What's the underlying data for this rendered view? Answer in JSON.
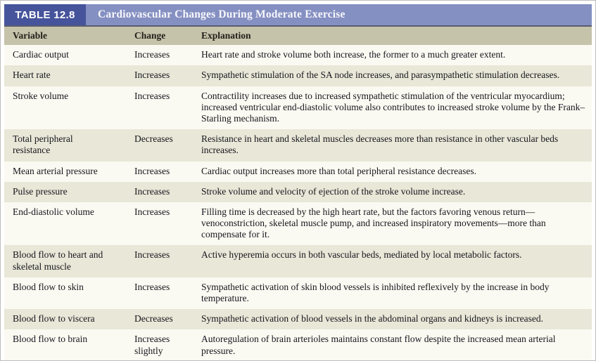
{
  "table": {
    "label": "TABLE 12.8",
    "title": "Cardiovascular Changes During Moderate Exercise",
    "columns": [
      "Variable",
      "Change",
      "Explanation"
    ],
    "rows": [
      {
        "variable": "Cardiac output",
        "change": "Increases",
        "explanation": "Heart rate and stroke volume both increase, the former to a much greater extent."
      },
      {
        "variable": "Heart rate",
        "change": "Increases",
        "explanation": "Sympathetic stimulation of the SA node increases, and parasympathetic stimulation decreases."
      },
      {
        "variable": "Stroke volume",
        "change": "Increases",
        "explanation": "Contractility increases due to increased sympathetic stimulation of the ventricular myocardium; increased ventricular end-diastolic volume also contributes to increased stroke volume by the Frank–Starling mechanism."
      },
      {
        "variable": "Total peripheral resistance",
        "change": "Decreases",
        "explanation": "Resistance in heart and skeletal muscles decreases more than resistance in other vascular beds increases."
      },
      {
        "variable": "Mean arterial pressure",
        "change": "Increases",
        "explanation": "Cardiac output increases more than total peripheral resistance decreases."
      },
      {
        "variable": "Pulse pressure",
        "change": "Increases",
        "explanation": "Stroke volume and velocity of ejection of the stroke volume increase."
      },
      {
        "variable": "End-diastolic volume",
        "change": "Increases",
        "explanation": "Filling time is decreased by the high heart rate, but the factors favoring venous return—venoconstriction, skeletal muscle pump, and increased inspiratory movements—more than compensate for it."
      },
      {
        "variable": "Blood flow to heart and skeletal muscle",
        "change": "Increases",
        "explanation": "Active hyperemia occurs in both vascular beds, mediated by local metabolic factors."
      },
      {
        "variable": "Blood flow to skin",
        "change": "Increases",
        "explanation": "Sympathetic activation of skin blood vessels is inhibited reflexively by the increase in body temperature."
      },
      {
        "variable": "Blood flow to viscera",
        "change": "Decreases",
        "explanation": "Sympathetic activation of blood vessels in the abdominal organs and kidneys is increased."
      },
      {
        "variable": "Blood flow to brain",
        "change": "Increases slightly",
        "explanation": "Autoregulation of brain arterioles maintains constant flow despite the increased mean arterial pressure."
      }
    ],
    "colors": {
      "label_box_bg": "#46549b",
      "title_bar_bg": "#8590c2",
      "column_header_bg": "#c6c3ab",
      "row_bg": "#fbfaf2",
      "row_alt_bg": "#e9e7d7",
      "header_text": "#ffffff",
      "body_text": "#15151d"
    }
  }
}
